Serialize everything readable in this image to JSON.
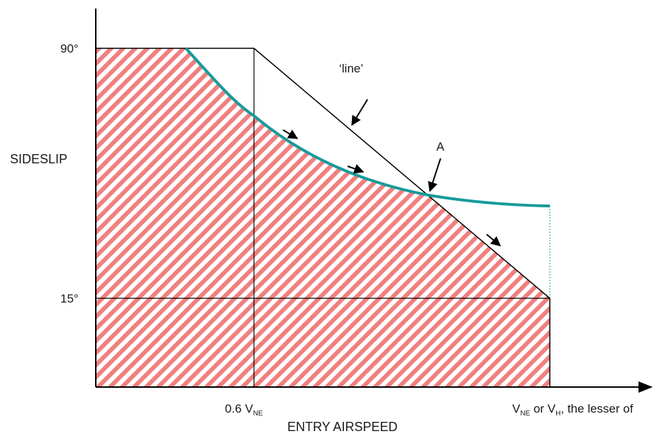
{
  "y_axis": {
    "title": "SIDESLIP",
    "tick_90": "90°",
    "tick_15": "15°"
  },
  "x_axis": {
    "title": "ENTRY AIRSPEED",
    "tick_06": {
      "prefix": "0.6 V",
      "sub": "NE"
    },
    "tick_max": {
      "v1": "V",
      "sub1": "NE",
      "mid": " or V",
      "sub2": "H",
      "suffix": ", the lesser of"
    }
  },
  "annotations": {
    "line_label": "‘line’",
    "point_a": "A"
  },
  "colors": {
    "hatch": "#f08080",
    "curve": "#179a9a",
    "line": "#000000"
  }
}
